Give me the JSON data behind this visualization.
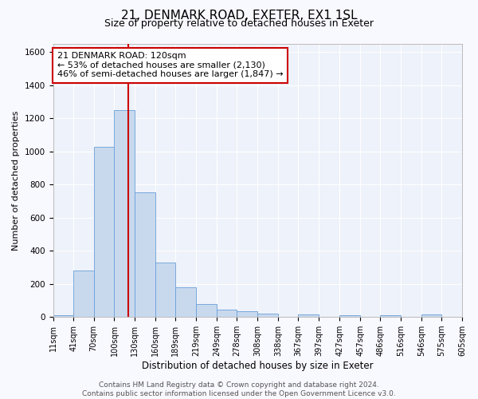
{
  "title": "21, DENMARK ROAD, EXETER, EX1 1SL",
  "subtitle": "Size of property relative to detached houses in Exeter",
  "xlabel": "Distribution of detached houses by size in Exeter",
  "ylabel": "Number of detached properties",
  "bar_color": "#c8d9ee",
  "bar_edge_color": "#6a9fd8",
  "background_color": "#eef2fa",
  "grid_color": "#ffffff",
  "bins": [
    11,
    41,
    70,
    100,
    130,
    160,
    189,
    219,
    249,
    278,
    308,
    338,
    367,
    397,
    427,
    457,
    486,
    516,
    546,
    575,
    605
  ],
  "values": [
    10,
    280,
    1030,
    1250,
    755,
    330,
    180,
    80,
    45,
    35,
    20,
    0,
    15,
    0,
    12,
    0,
    10,
    0,
    15,
    0
  ],
  "property_value": 120,
  "annotation_line1": "21 DENMARK ROAD: 120sqm",
  "annotation_line2": "← 53% of detached houses are smaller (2,130)",
  "annotation_line3": "46% of semi-detached houses are larger (1,847) →",
  "annotation_box_color": "#ffffff",
  "annotation_box_edge_color": "#cc0000",
  "vline_color": "#cc0000",
  "ylim": [
    0,
    1650
  ],
  "yticks": [
    0,
    200,
    400,
    600,
    800,
    1000,
    1200,
    1400,
    1600
  ],
  "tick_labels": [
    "11sqm",
    "41sqm",
    "70sqm",
    "100sqm",
    "130sqm",
    "160sqm",
    "189sqm",
    "219sqm",
    "249sqm",
    "278sqm",
    "308sqm",
    "338sqm",
    "367sqm",
    "397sqm",
    "427sqm",
    "457sqm",
    "486sqm",
    "516sqm",
    "546sqm",
    "575sqm",
    "605sqm"
  ],
  "footnote": "Contains HM Land Registry data © Crown copyright and database right 2024.\nContains public sector information licensed under the Open Government Licence v3.0.",
  "title_fontsize": 11,
  "subtitle_fontsize": 9,
  "xlabel_fontsize": 8.5,
  "ylabel_fontsize": 8,
  "tick_fontsize": 7,
  "annotation_fontsize": 8,
  "footnote_fontsize": 6.5
}
